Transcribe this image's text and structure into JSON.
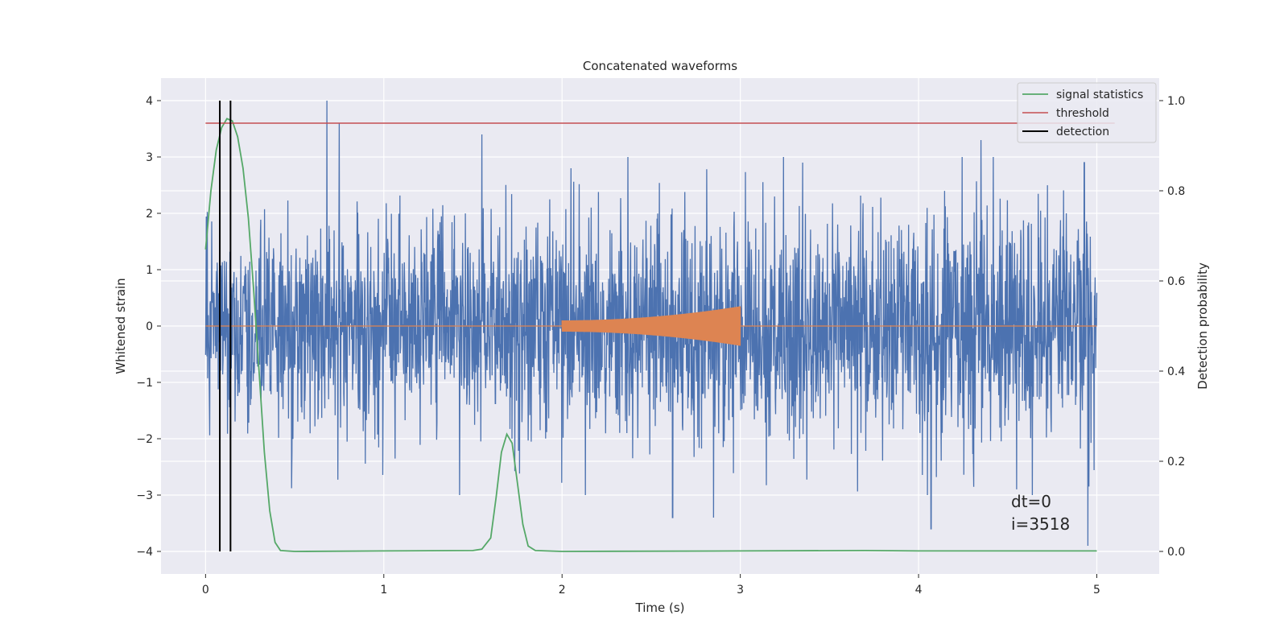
{
  "chart_data": {
    "type": "line",
    "title": "Concatenated waveforms",
    "xlabel": "Time (s)",
    "ylabel": "Whitened strain",
    "y2label": "Detection probability",
    "xlim": [
      -0.25,
      5.35
    ],
    "ylim": [
      -4.4,
      4.4
    ],
    "y2lim": [
      -0.05,
      1.05
    ],
    "xticks": [
      0,
      1,
      2,
      3,
      4,
      5
    ],
    "yticks": [
      -4,
      -3,
      -2,
      -1,
      0,
      1,
      2,
      3,
      4
    ],
    "y2ticks": [
      0.0,
      0.2,
      0.4,
      0.6,
      0.8,
      1.0
    ],
    "xtick_labels": [
      "0",
      "1",
      "2",
      "3",
      "4",
      "5"
    ],
    "ytick_labels": [
      "−4",
      "−3",
      "−2",
      "−1",
      "0",
      "1",
      "2",
      "3",
      "4"
    ],
    "y2tick_labels": [
      "0.0",
      "0.2",
      "0.4",
      "0.6",
      "0.8",
      "1.0"
    ],
    "grid": true,
    "legend_position": "top-right",
    "colors": {
      "strain": "#4c72b0",
      "injection": "#dd8452",
      "signal": "#55a868",
      "threshold": "#c44e52",
      "detection": "#000000",
      "background": "#eaeaf2",
      "grid": "#ffffff"
    },
    "series": [
      {
        "name": "",
        "role": "strain",
        "x_range": [
          0,
          5
        ],
        "envelope": [
          [
            0,
            1.2
          ],
          [
            0.5,
            1.5
          ],
          [
            1.0,
            1.5
          ],
          [
            1.5,
            1.5
          ],
          [
            2.0,
            1.7
          ],
          [
            2.5,
            1.6
          ],
          [
            3.0,
            1.7
          ],
          [
            3.5,
            1.6
          ],
          [
            4.0,
            1.7
          ],
          [
            4.5,
            1.7
          ],
          [
            5.0,
            1.6
          ]
        ],
        "spikes": [
          [
            0.68,
            4.0
          ],
          [
            0.75,
            3.6
          ],
          [
            1.55,
            3.4
          ],
          [
            2.05,
            2.8
          ],
          [
            2.62,
            -3.4
          ],
          [
            2.85,
            -3.4
          ],
          [
            3.35,
            2.9
          ],
          [
            4.07,
            -3.6
          ],
          [
            4.35,
            3.3
          ],
          [
            4.93,
            2.9
          ],
          [
            4.95,
            -3.9
          ]
        ]
      },
      {
        "name": "",
        "role": "injection",
        "x_range": [
          2.0,
          3.0
        ],
        "amplitude_start": 0.1,
        "amplitude_end": 0.35
      },
      {
        "name": "signal statistics",
        "role": "signal",
        "axis": "right",
        "x": [
          0.0,
          0.03,
          0.06,
          0.09,
          0.12,
          0.15,
          0.18,
          0.21,
          0.24,
          0.27,
          0.3,
          0.33,
          0.36,
          0.39,
          0.42,
          0.5,
          1.0,
          1.5,
          1.55,
          1.6,
          1.63,
          1.66,
          1.69,
          1.72,
          1.75,
          1.78,
          1.81,
          1.85,
          2.0,
          3.0,
          3.7,
          4.0,
          5.0
        ],
        "y": [
          0.67,
          0.8,
          0.89,
          0.94,
          0.96,
          0.955,
          0.92,
          0.85,
          0.74,
          0.58,
          0.4,
          0.22,
          0.09,
          0.02,
          0.002,
          0.0,
          0.001,
          0.002,
          0.005,
          0.03,
          0.12,
          0.22,
          0.26,
          0.24,
          0.15,
          0.06,
          0.012,
          0.002,
          0.0,
          0.001,
          0.002,
          0.001,
          0.001
        ]
      },
      {
        "name": "threshold",
        "role": "threshold",
        "axis": "right",
        "x": [
          0,
          5.1
        ],
        "y": [
          0.95,
          0.95
        ]
      },
      {
        "name": "detection",
        "role": "detection",
        "axis": "left",
        "x": [
          0.08,
          0.14
        ],
        "y_range": [
          -4,
          4
        ]
      }
    ],
    "legend": [
      "signal statistics",
      "threshold",
      "detection"
    ],
    "annotations": [
      "dt=0",
      "i=3518"
    ]
  }
}
